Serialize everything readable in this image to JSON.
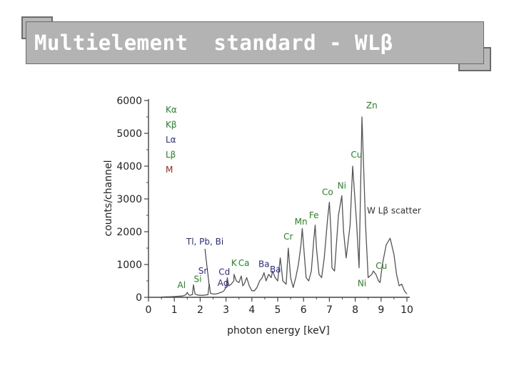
{
  "slide": {
    "title": "Multielement  standard - WLβ"
  },
  "chart_data": {
    "type": "line",
    "xlabel": "photon energy [keV]",
    "ylabel": "counts/channel",
    "xlim": [
      0,
      10
    ],
    "ylim": [
      0,
      6000
    ],
    "x_ticks": [
      "0",
      "1",
      "2",
      "3",
      "4",
      "5",
      "6",
      "7",
      "8",
      "9",
      "10"
    ],
    "y_ticks": [
      "0",
      "1000",
      "2000",
      "3000",
      "4000",
      "5000",
      "6000"
    ],
    "grid": false,
    "legend": {
      "position": "top-left",
      "entries": [
        {
          "label": "Kα",
          "color": "#1f8a1f"
        },
        {
          "label": "Kβ",
          "color": "#1f8a1f"
        },
        {
          "label": "Lα",
          "color": "#2a2a9a"
        },
        {
          "label": "Lβ",
          "color": "#1f8a1f"
        },
        {
          "label": "M",
          "color": "#b02020"
        }
      ]
    },
    "series": [
      {
        "color": "#555555",
        "x": [
          0.5,
          0.6,
          0.7,
          0.8,
          0.9,
          1.0,
          1.1,
          1.2,
          1.3,
          1.4,
          1.45,
          1.5,
          1.55,
          1.6,
          1.7,
          1.74,
          1.8,
          1.9,
          2.0,
          2.1,
          2.2,
          2.3,
          2.35,
          2.4,
          2.5,
          2.6,
          2.7,
          2.8,
          2.9,
          3.0,
          3.05,
          3.1,
          3.2,
          3.3,
          3.31,
          3.4,
          3.5,
          3.59,
          3.65,
          3.7,
          3.8,
          3.9,
          4.0,
          4.1,
          4.2,
          4.3,
          4.4,
          4.47,
          4.55,
          4.65,
          4.75,
          4.8,
          4.9,
          5.0,
          5.1,
          5.2,
          5.33,
          5.41,
          5.5,
          5.6,
          5.7,
          5.8,
          5.9,
          5.95,
          6.0,
          6.1,
          6.2,
          6.3,
          6.4,
          6.45,
          6.5,
          6.6,
          6.7,
          6.8,
          6.93,
          7.0,
          7.06,
          7.1,
          7.2,
          7.35,
          7.48,
          7.55,
          7.65,
          7.8,
          7.9,
          8.05,
          8.15,
          8.26,
          8.4,
          8.5,
          8.64,
          8.7,
          8.8,
          8.9,
          8.96,
          9.05,
          9.2,
          9.35,
          9.5,
          9.6,
          9.7,
          9.8,
          9.9,
          10.0
        ],
        "y": [
          10,
          10,
          15,
          15,
          20,
          25,
          30,
          35,
          40,
          60,
          80,
          150,
          80,
          60,
          80,
          380,
          100,
          70,
          60,
          60,
          70,
          80,
          400,
          120,
          100,
          100,
          120,
          150,
          180,
          300,
          600,
          350,
          400,
          500,
          700,
          500,
          450,
          650,
          350,
          400,
          600,
          350,
          200,
          200,
          300,
          500,
          600,
          750,
          500,
          700,
          600,
          800,
          600,
          500,
          1200,
          500,
          400,
          1500,
          600,
          300,
          600,
          1000,
          1600,
          2100,
          1600,
          600,
          500,
          800,
          1800,
          2200,
          1500,
          700,
          600,
          1200,
          2400,
          2900,
          2000,
          900,
          800,
          2500,
          3100,
          2000,
          1200,
          2200,
          4000,
          2300,
          900,
          5500,
          2200,
          600,
          700,
          800,
          700,
          500,
          450,
          1000,
          1600,
          1800,
          1300,
          700,
          350,
          400,
          200,
          100
        ]
      }
    ],
    "annotations": [
      {
        "text": "Zn",
        "color": "#1f8a1f",
        "x": 8.64,
        "y": 5500
      },
      {
        "text": "Cu",
        "color": "#1f8a1f",
        "x": 8.05,
        "y": 4000
      },
      {
        "text": "Ni",
        "color": "#1f8a1f",
        "x": 7.48,
        "y": 3100
      },
      {
        "text": "Co",
        "color": "#1f8a1f",
        "x": 6.93,
        "y": 2900
      },
      {
        "text": "Fe",
        "color": "#1f8a1f",
        "x": 6.4,
        "y": 2200
      },
      {
        "text": "Mn",
        "color": "#1f8a1f",
        "x": 5.9,
        "y": 2000
      },
      {
        "text": "Cr",
        "color": "#1f8a1f",
        "x": 5.41,
        "y": 1500
      },
      {
        "text": "W Lβ scatter",
        "color": "#333333",
        "x": 9.5,
        "y": 1900
      },
      {
        "text": "Tl, Pb, Bi",
        "color": "#2a2a9a",
        "x": 2.35,
        "y": 1000
      },
      {
        "text": "Sr",
        "color": "#2a2a9a",
        "x": 2.1,
        "y": 500
      },
      {
        "text": "Al",
        "color": "#1f8a1f",
        "x": 1.5,
        "y": 150
      },
      {
        "text": "Si",
        "color": "#1f8a1f",
        "x": 1.74,
        "y": 380
      },
      {
        "text": "Cd",
        "color": "#2a2a9a",
        "x": 3.1,
        "y": 550
      },
      {
        "text": "Ag",
        "color": "#2a2a9a",
        "x": 3.0,
        "y": 300
      },
      {
        "text": "K",
        "color": "#1f8a1f",
        "x": 3.31,
        "y": 700
      },
      {
        "text": "Ca",
        "color": "#1f8a1f",
        "x": 3.69,
        "y": 650
      },
      {
        "text": "Ba",
        "color": "#2a2a9a",
        "x": 4.47,
        "y": 750
      },
      {
        "text": "Ba",
        "color": "#2a2a9a",
        "x": 4.8,
        "y": 800
      },
      {
        "text": "Ni",
        "color": "#1f8a1f",
        "x": 8.26,
        "y": 600
      },
      {
        "text": "Cu",
        "color": "#1f8a1f",
        "x": 8.9,
        "y": 700
      }
    ]
  }
}
